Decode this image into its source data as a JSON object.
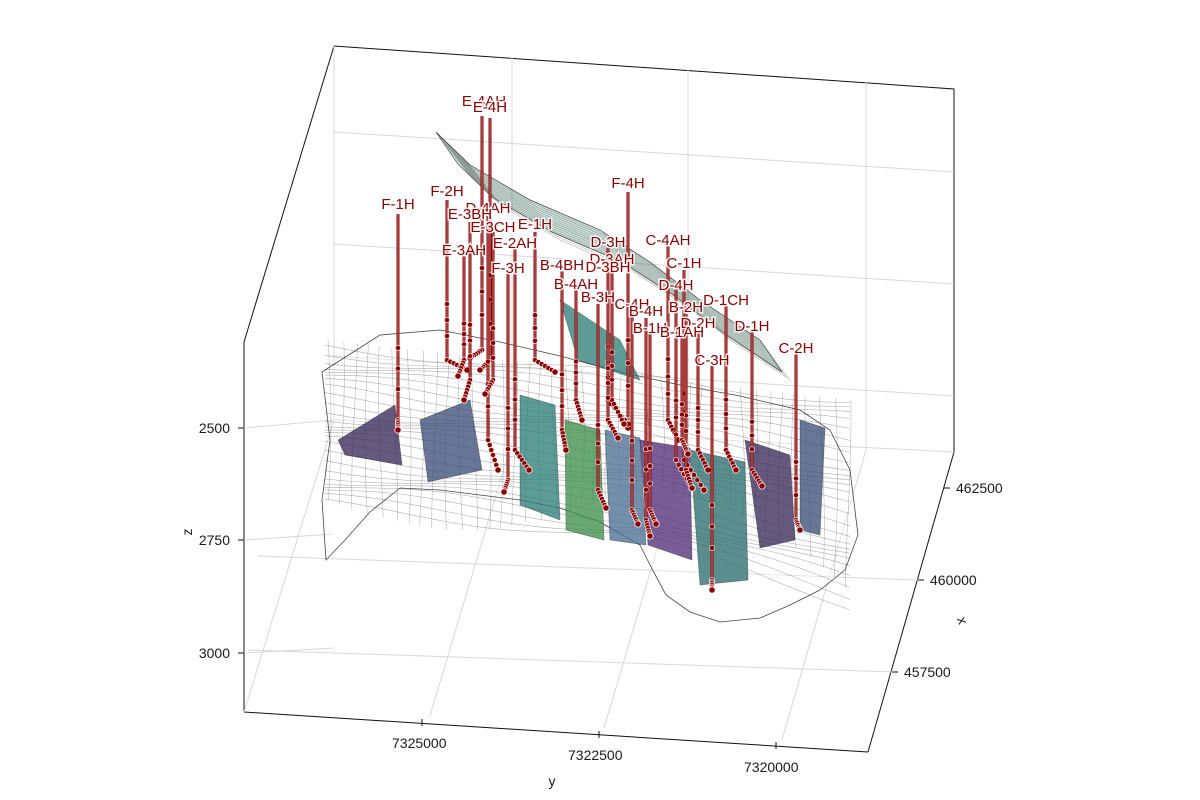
{
  "chart_data": {
    "type": "3d-surface-with-well-paths",
    "axes": {
      "x": {
        "label": "x",
        "ticks": [
          "457500",
          "460000",
          "462500"
        ]
      },
      "y": {
        "label": "y",
        "ticks": [
          "7325000",
          "7322500",
          "7320000"
        ]
      },
      "z": {
        "label": "z",
        "ticks": [
          "2500",
          "2750",
          "3000"
        ],
        "reversed": true
      }
    },
    "grid": true,
    "colors": {
      "well": "#8b0000",
      "mesh": "#222222",
      "patches": [
        "#3b2a5a",
        "#3e4f7a",
        "#2f7f7a",
        "#3f8f4a",
        "#4c6f93",
        "#52307a",
        "#2d6e6e"
      ]
    },
    "wells": [
      "E-4AH",
      "E-4H",
      "F-4H",
      "F-1H",
      "F-2H",
      "D-4AH",
      "E-3BH",
      "E-3CH",
      "E-1H",
      "E-2AH",
      "E-3AH",
      "F-3H",
      "D-3H",
      "C-4AH",
      "D-3AH",
      "B-4BH",
      "D-3BH",
      "C-1H",
      "B-4AH",
      "D-4H",
      "B-3H",
      "C-4H",
      "D-1CH",
      "B-4H",
      "B-2H",
      "B-1H",
      "D-2H",
      "B-1AH",
      "D-1H",
      "C-3H",
      "C-2H"
    ]
  }
}
